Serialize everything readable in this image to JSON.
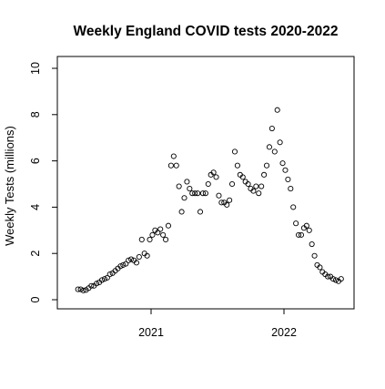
{
  "chart_data": {
    "type": "scatter",
    "title": "Weekly England COVID tests 2020-2022",
    "xlabel": "",
    "ylabel": "Weekly Tests (millions)",
    "xlim": [
      2020.3,
      2022.55
    ],
    "ylim": [
      0,
      10
    ],
    "x_ticks": [
      2021,
      2022
    ],
    "x_tick_labels": [
      "2021",
      "2022"
    ],
    "y_ticks": [
      0,
      2,
      4,
      6,
      8,
      10
    ],
    "y_tick_labels": [
      "0",
      "2",
      "4",
      "6",
      "8",
      "10"
    ],
    "grid": false,
    "marker": "open circle",
    "series": [
      {
        "x": [
          2020.45,
          2020.47,
          2020.49,
          2020.51,
          2020.53,
          2020.55,
          2020.57,
          2020.59,
          2020.61,
          2020.63,
          2020.65,
          2020.67,
          2020.69,
          2020.71,
          2020.73,
          2020.75,
          2020.77,
          2020.79,
          2020.81,
          2020.83,
          2020.85,
          2020.87,
          2020.89,
          2020.91,
          2020.93,
          2020.95,
          2020.97,
          2020.99,
          2021.01,
          2021.03,
          2021.05,
          2021.07,
          2021.09,
          2021.11,
          2021.13,
          2021.15,
          2021.17,
          2021.19,
          2021.21,
          2021.23,
          2021.25,
          2021.27,
          2021.29,
          2021.31,
          2021.33,
          2021.35,
          2021.37,
          2021.39,
          2021.41,
          2021.43,
          2021.45,
          2021.47,
          2021.49,
          2021.51,
          2021.53,
          2021.55,
          2021.57,
          2021.59,
          2021.61,
          2021.63,
          2021.65,
          2021.67,
          2021.69,
          2021.71,
          2021.73,
          2021.75,
          2021.77,
          2021.79,
          2021.81,
          2021.83,
          2021.85,
          2021.87,
          2021.89,
          2021.91,
          2021.93,
          2021.95,
          2021.97,
          2021.99,
          2022.01,
          2022.03,
          2022.05,
          2022.07,
          2022.09,
          2022.11,
          2022.13,
          2022.15,
          2022.17,
          2022.19,
          2022.21,
          2022.23,
          2022.25,
          2022.27,
          2022.29,
          2022.31,
          2022.33,
          2022.35,
          2022.37,
          2022.39,
          2022.41,
          2022.43
        ],
        "y": [
          0.45,
          0.45,
          0.4,
          0.42,
          0.5,
          0.6,
          0.6,
          0.7,
          0.75,
          0.85,
          0.9,
          0.95,
          1.1,
          1.15,
          1.25,
          1.35,
          1.45,
          1.5,
          1.55,
          1.7,
          1.75,
          1.7,
          1.6,
          1.85,
          2.6,
          2.0,
          1.9,
          2.6,
          2.8,
          3.0,
          2.9,
          3.05,
          2.8,
          2.6,
          3.2,
          5.8,
          6.2,
          5.8,
          4.9,
          3.8,
          4.4,
          5.1,
          4.8,
          4.6,
          4.6,
          4.6,
          3.8,
          4.6,
          4.6,
          5.0,
          5.4,
          5.5,
          5.3,
          4.5,
          4.2,
          4.2,
          4.1,
          4.3,
          5.0,
          6.4,
          5.8,
          5.4,
          5.3,
          5.1,
          5.0,
          4.8,
          4.7,
          4.9,
          4.6,
          4.9,
          5.4,
          5.8,
          6.6,
          7.4,
          6.4,
          8.2,
          6.8,
          5.9,
          5.6,
          5.2,
          4.8,
          4.0,
          3.3,
          2.8,
          2.8,
          3.1,
          3.2,
          3.0,
          2.4,
          1.9,
          1.5,
          1.4,
          1.2,
          1.1,
          1.0,
          1.0,
          0.9,
          0.85,
          0.8,
          0.9
        ]
      }
    ]
  }
}
